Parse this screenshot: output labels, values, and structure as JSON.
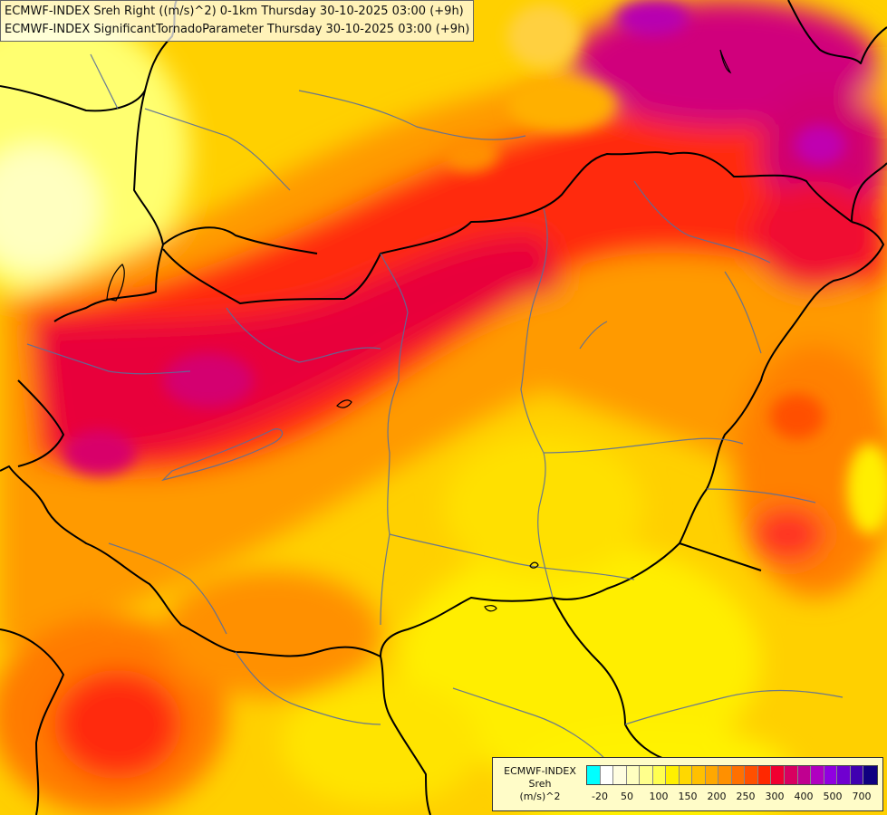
{
  "header": {
    "line1": "ECMWF-INDEX Sreh Right ((m/s)^2) 0-1km Thursday 30-10-2025 03:00 (+9h)",
    "line2": "ECMWF-INDEX SignificantTornadoParameter Thursday 30-10-2025 03:00 (+9h)"
  },
  "legend": {
    "title_line1": "ECMWF-INDEX",
    "title_line2": "Sreh",
    "title_line3": "(m/s)^2",
    "colors": [
      "#00ffff",
      "#ffffff",
      "#fffde0",
      "#ffffc0",
      "#ffff8c",
      "#ffff50",
      "#fff000",
      "#ffd800",
      "#ffc000",
      "#ffa800",
      "#ff9000",
      "#ff7000",
      "#ff5000",
      "#ff2800",
      "#f00030",
      "#d80060",
      "#c00090",
      "#b000c0",
      "#9000e0",
      "#7000d0",
      "#4000b0",
      "#100080"
    ],
    "tick_labels": [
      "-20",
      "50",
      "100",
      "150",
      "200",
      "250",
      "300",
      "400",
      "500",
      "700"
    ]
  },
  "palette": {
    "yellow": "#ffe600",
    "orange": "#ff9800",
    "red": "#ff1a14",
    "crimson": "#e0003c",
    "magenta": "#c8008c",
    "pale": "#ffff88"
  }
}
